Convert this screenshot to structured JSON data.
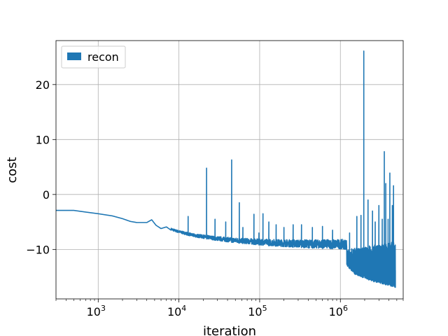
{
  "chart_data": {
    "type": "line",
    "title": "",
    "xlabel": "iteration",
    "ylabel": "cost",
    "xscale": "log",
    "xlim": [
      300,
      6000000
    ],
    "ylim": [
      -19,
      28
    ],
    "grid": true,
    "legend_placement": "top-left",
    "x_ticks": [
      {
        "value": 1000,
        "base": "10",
        "exp": "3"
      },
      {
        "value": 10000,
        "base": "10",
        "exp": "4"
      },
      {
        "value": 100000,
        "base": "10",
        "exp": "5"
      },
      {
        "value": 1000000,
        "base": "10",
        "exp": "6"
      }
    ],
    "y_ticks": [
      {
        "value": -10,
        "label": "−10"
      },
      {
        "value": 0,
        "label": "0"
      },
      {
        "value": 10,
        "label": "10"
      },
      {
        "value": 20,
        "label": "20"
      }
    ],
    "series": [
      {
        "name": "recon",
        "color": "#1f77b4",
        "baseline": [
          [
            300,
            -2.9
          ],
          [
            500,
            -2.9
          ],
          [
            700,
            -3.2
          ],
          [
            1000,
            -3.5
          ],
          [
            1500,
            -3.9
          ],
          [
            2000,
            -4.4
          ],
          [
            2500,
            -4.9
          ],
          [
            3000,
            -5.1
          ],
          [
            4000,
            -5.1
          ],
          [
            4600,
            -4.6
          ],
          [
            5200,
            -5.6
          ],
          [
            6000,
            -6.2
          ],
          [
            7000,
            -5.9
          ],
          [
            8000,
            -6.5
          ],
          [
            9000,
            -6.8
          ],
          [
            10000,
            -7.0
          ],
          [
            15000,
            -7.7
          ],
          [
            20000,
            -8.0
          ],
          [
            30000,
            -8.4
          ],
          [
            50000,
            -8.8
          ],
          [
            100000,
            -9.2
          ],
          [
            200000,
            -9.5
          ],
          [
            500000,
            -9.8
          ],
          [
            1000000,
            -9.9
          ],
          [
            1200000,
            -10.0
          ]
        ],
        "noise_range": [
          8000,
          1200000
        ],
        "low_band": [
          [
            1200000,
            -13.0
          ],
          [
            1500000,
            -14.5
          ],
          [
            2000000,
            -15.3
          ],
          [
            3000000,
            -16.2
          ],
          [
            4800000,
            -16.9
          ]
        ],
        "high_band": [
          [
            1200000,
            -10.0
          ],
          [
            2000000,
            -9.5
          ],
          [
            3000000,
            -9.0
          ],
          [
            4800000,
            -8.5
          ]
        ],
        "spikes": [
          [
            13000,
            -4.0
          ],
          [
            22000,
            4.8
          ],
          [
            28000,
            -4.5
          ],
          [
            38000,
            -5.0
          ],
          [
            45000,
            6.3
          ],
          [
            56000,
            -1.5
          ],
          [
            62000,
            -6.0
          ],
          [
            85000,
            -3.6
          ],
          [
            98000,
            -7.0
          ],
          [
            110000,
            -3.5
          ],
          [
            130000,
            -5.0
          ],
          [
            160000,
            -5.5
          ],
          [
            200000,
            -6.0
          ],
          [
            260000,
            -5.5
          ],
          [
            330000,
            -5.5
          ],
          [
            450000,
            -6.0
          ],
          [
            600000,
            -5.8
          ],
          [
            800000,
            -6.5
          ],
          [
            1300000,
            -7.0
          ],
          [
            1600000,
            -4.0
          ],
          [
            1800000,
            -3.8
          ],
          [
            1950000,
            26.1
          ],
          [
            2200000,
            -1.0
          ],
          [
            2500000,
            -3.0
          ],
          [
            2700000,
            -5.0
          ],
          [
            3000000,
            -2.0
          ],
          [
            3300000,
            -4.5
          ],
          [
            3500000,
            7.8
          ],
          [
            3650000,
            2.0
          ],
          [
            3900000,
            -4.5
          ],
          [
            4100000,
            3.9
          ],
          [
            4400000,
            -2.0
          ],
          [
            4550000,
            1.6
          ],
          [
            4700000,
            -13.0
          ]
        ],
        "end_x": 4800000,
        "end_y": -13.8
      }
    ]
  }
}
